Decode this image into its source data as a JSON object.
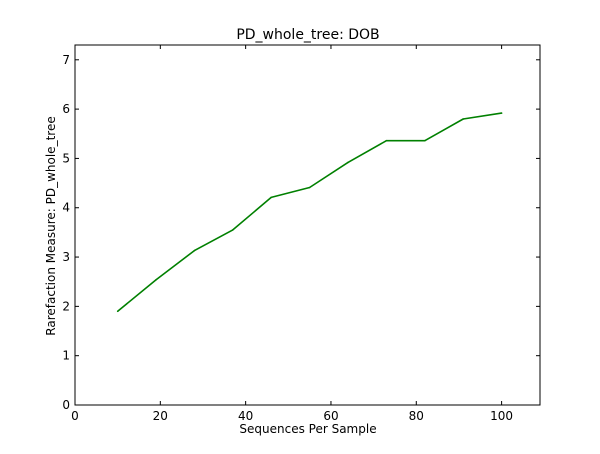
{
  "chart_data": {
    "type": "line",
    "title": "PD_whole_tree: DOB",
    "xlabel": "Sequences Per Sample",
    "ylabel": "Rarefaction Measure: PD_whole_tree",
    "xlim": [
      0,
      109
    ],
    "ylim": [
      0,
      7.3
    ],
    "xticks": [
      0,
      20,
      40,
      60,
      80,
      100
    ],
    "yticks": [
      0,
      1,
      2,
      3,
      4,
      5,
      6,
      7
    ],
    "grid": false,
    "legend": "none",
    "series": [
      {
        "color": "#008000",
        "x": [
          10,
          19,
          28,
          37,
          46,
          55,
          64,
          73,
          82,
          91,
          100
        ],
        "values": [
          1.9,
          2.54,
          3.13,
          3.55,
          4.21,
          4.41,
          4.92,
          5.36,
          5.36,
          5.8,
          5.92
        ]
      }
    ]
  }
}
